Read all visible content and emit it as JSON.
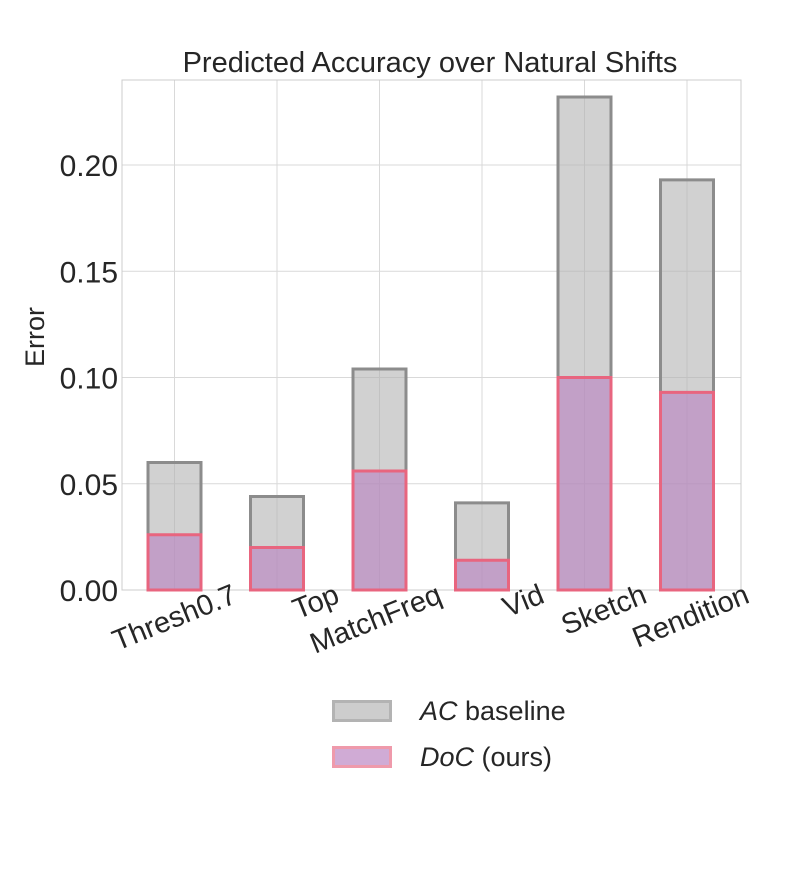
{
  "chart_data": {
    "type": "bar",
    "title": "Predicted Accuracy over Natural Shifts",
    "xlabel": "",
    "ylabel": "Error",
    "categories": [
      "Thresh0.7",
      "Top",
      "MatchFreq",
      "Vid",
      "Sketch",
      "Rendition"
    ],
    "series": [
      {
        "name_italic": "AC",
        "name_rest": " baseline",
        "values": [
          0.06,
          0.044,
          0.104,
          0.041,
          0.232,
          0.193
        ],
        "fill": "#b3b3b3",
        "stroke": "#8c8c8c"
      },
      {
        "name_italic": "DoC",
        "name_rest": " (ours)",
        "values": [
          0.026,
          0.02,
          0.056,
          0.014,
          0.1,
          0.093
        ],
        "fill": "#b77fbf",
        "stroke": "#e8657f"
      }
    ],
    "ylim": [
      0,
      0.24
    ],
    "yticks": [
      "0.00",
      "0.05",
      "0.10",
      "0.15",
      "0.20"
    ],
    "grid": true,
    "legend_position": "bottom"
  }
}
